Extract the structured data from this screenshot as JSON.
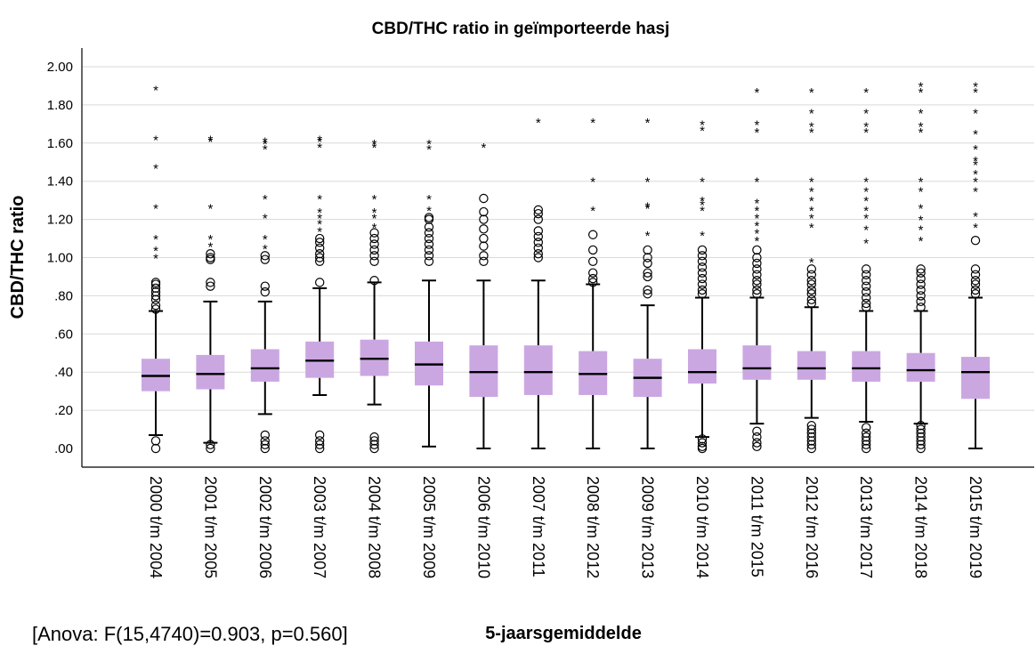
{
  "chart_data": {
    "type": "boxplot",
    "title": "CBD/THC ratio in geïmporteerde hasj",
    "xlabel": "5-jaarsgemiddelde",
    "ylabel": "CBD/THC ratio",
    "ylim": [
      0,
      2.0
    ],
    "ytick_labels": [
      ".00",
      ".20",
      ".40",
      ".60",
      ".80",
      "1.00",
      "1.20",
      "1.40",
      "1.60",
      "1.80",
      "2.00"
    ],
    "grid": true,
    "categories": [
      "2000 t/m 2004",
      "2001 t/m 2005",
      "2002 t/m 2006",
      "2003 t/m 2007",
      "2004 t/m 2008",
      "2005 t/m 2009",
      "2006 t/m 2010",
      "2007 t/m 2011",
      "2008 t/m 2012",
      "2009 t/m 2013",
      "2010 t/m 2014",
      "2011 t/m 2015",
      "2012 t/m 2016",
      "2013 t/m 2017",
      "2014 t/m 2018",
      "2015 t/m 2019"
    ],
    "boxes": [
      {
        "q1": 0.3,
        "median": 0.38,
        "q3": 0.47,
        "whisker_low": 0.07,
        "whisker_high": 0.72,
        "outliers": [
          0.0,
          0.04,
          0.73,
          0.75,
          0.78,
          0.8,
          0.82,
          0.84,
          0.86,
          0.87
        ],
        "extremes": [
          1.0,
          1.04,
          1.1,
          1.26,
          1.47,
          1.62,
          1.88
        ]
      },
      {
        "q1": 0.31,
        "median": 0.39,
        "q3": 0.49,
        "whisker_low": 0.03,
        "whisker_high": 0.77,
        "outliers": [
          0.0,
          0.02,
          0.85,
          0.87,
          0.99,
          1.0,
          1.02
        ],
        "extremes": [
          1.06,
          1.1,
          1.26,
          1.61,
          1.62
        ]
      },
      {
        "q1": 0.35,
        "median": 0.42,
        "q3": 0.52,
        "whisker_low": 0.18,
        "whisker_high": 0.77,
        "outliers": [
          0.0,
          0.02,
          0.04,
          0.07,
          0.82,
          0.85,
          0.99,
          1.01
        ],
        "extremes": [
          1.05,
          1.1,
          1.21,
          1.31,
          1.57,
          1.6,
          1.61
        ]
      },
      {
        "q1": 0.37,
        "median": 0.46,
        "q3": 0.56,
        "whisker_low": 0.28,
        "whisker_high": 0.84,
        "outliers": [
          0.0,
          0.02,
          0.04,
          0.07,
          0.87,
          0.98,
          1.0,
          1.02,
          1.05,
          1.08,
          1.1
        ],
        "extremes": [
          1.14,
          1.18,
          1.21,
          1.24,
          1.31,
          1.58,
          1.61,
          1.62
        ]
      },
      {
        "q1": 0.38,
        "median": 0.47,
        "q3": 0.57,
        "whisker_low": 0.23,
        "whisker_high": 0.87,
        "outliers": [
          0.0,
          0.02,
          0.04,
          0.06,
          0.88,
          0.98,
          1.01,
          1.04,
          1.07,
          1.1,
          1.13
        ],
        "extremes": [
          1.16,
          1.21,
          1.24,
          1.31,
          1.58,
          1.6
        ]
      },
      {
        "q1": 0.33,
        "median": 0.44,
        "q3": 0.56,
        "whisker_low": 0.01,
        "whisker_high": 0.88,
        "outliers": [
          0.98,
          1.01,
          1.04,
          1.07,
          1.1,
          1.13,
          1.16,
          1.2,
          1.21
        ],
        "extremes": [
          1.25,
          1.31,
          1.57,
          1.6
        ]
      },
      {
        "q1": 0.27,
        "median": 0.4,
        "q3": 0.54,
        "whisker_low": 0.0,
        "whisker_high": 0.88,
        "outliers": [
          0.98,
          1.01,
          1.06,
          1.1,
          1.15,
          1.2,
          1.24,
          1.31
        ],
        "extremes": [
          1.58
        ]
      },
      {
        "q1": 0.28,
        "median": 0.4,
        "q3": 0.54,
        "whisker_low": 0.0,
        "whisker_high": 0.88,
        "outliers": [
          1.0,
          1.02,
          1.05,
          1.08,
          1.11,
          1.14,
          1.2,
          1.23,
          1.25
        ],
        "extremes": [
          1.71
        ]
      },
      {
        "q1": 0.28,
        "median": 0.39,
        "q3": 0.51,
        "whisker_low": 0.0,
        "whisker_high": 0.86,
        "outliers": [
          0.87,
          0.89,
          0.92,
          0.98,
          1.04,
          1.12
        ],
        "extremes": [
          1.25,
          1.4,
          1.71
        ]
      },
      {
        "q1": 0.27,
        "median": 0.37,
        "q3": 0.47,
        "whisker_low": 0.0,
        "whisker_high": 0.75,
        "outliers": [
          0.81,
          0.83,
          0.9,
          0.92,
          0.97,
          1.0,
          1.04
        ],
        "extremes": [
          1.12,
          1.26,
          1.27,
          1.4,
          1.71
        ]
      },
      {
        "q1": 0.34,
        "median": 0.4,
        "q3": 0.52,
        "whisker_low": 0.06,
        "whisker_high": 0.79,
        "outliers": [
          0.0,
          0.01,
          0.03,
          0.05,
          0.81,
          0.83,
          0.86,
          0.89,
          0.92,
          0.95,
          0.98,
          1.01,
          1.04
        ],
        "extremes": [
          1.12,
          1.25,
          1.28,
          1.3,
          1.4,
          1.67,
          1.7
        ]
      },
      {
        "q1": 0.36,
        "median": 0.42,
        "q3": 0.54,
        "whisker_low": 0.13,
        "whisker_high": 0.79,
        "outliers": [
          0.01,
          0.03,
          0.06,
          0.09,
          0.81,
          0.83,
          0.86,
          0.88,
          0.91,
          0.94,
          0.97,
          1.0,
          1.04
        ],
        "extremes": [
          1.09,
          1.13,
          1.17,
          1.21,
          1.25,
          1.29,
          1.4,
          1.66,
          1.7,
          1.87
        ]
      },
      {
        "q1": 0.36,
        "median": 0.42,
        "q3": 0.51,
        "whisker_low": 0.16,
        "whisker_high": 0.74,
        "outliers": [
          0.0,
          0.02,
          0.04,
          0.06,
          0.08,
          0.1,
          0.12,
          0.76,
          0.78,
          0.81,
          0.83,
          0.86,
          0.88,
          0.91,
          0.94
        ],
        "extremes": [
          0.98,
          1.16,
          1.21,
          1.25,
          1.3,
          1.35,
          1.4,
          1.66,
          1.69,
          1.76,
          1.87
        ]
      },
      {
        "q1": 0.35,
        "median": 0.42,
        "q3": 0.51,
        "whisker_low": 0.14,
        "whisker_high": 0.72,
        "outliers": [
          0.0,
          0.02,
          0.04,
          0.06,
          0.08,
          0.11,
          0.74,
          0.76,
          0.79,
          0.82,
          0.85,
          0.88,
          0.91,
          0.94
        ],
        "extremes": [
          1.08,
          1.15,
          1.21,
          1.25,
          1.3,
          1.35,
          1.4,
          1.66,
          1.69,
          1.76,
          1.87
        ]
      },
      {
        "q1": 0.35,
        "median": 0.41,
        "q3": 0.5,
        "whisker_low": 0.13,
        "whisker_high": 0.72,
        "outliers": [
          0.0,
          0.02,
          0.04,
          0.06,
          0.08,
          0.1,
          0.12,
          0.74,
          0.77,
          0.8,
          0.83,
          0.86,
          0.89,
          0.92,
          0.94
        ],
        "extremes": [
          1.09,
          1.15,
          1.2,
          1.26,
          1.35,
          1.4,
          1.66,
          1.69,
          1.76,
          1.87,
          1.9
        ]
      },
      {
        "q1": 0.26,
        "median": 0.4,
        "q3": 0.48,
        "whisker_low": 0.0,
        "whisker_high": 0.79,
        "outliers": [
          0.81,
          0.83,
          0.86,
          0.88,
          0.91,
          0.94,
          1.09
        ],
        "extremes": [
          1.16,
          1.22,
          1.35,
          1.4,
          1.44,
          1.49,
          1.51,
          1.57,
          1.65,
          1.76,
          1.87,
          1.9
        ]
      }
    ]
  },
  "note": "[Anova: F(15,4740)=0.903, p=0.560]"
}
